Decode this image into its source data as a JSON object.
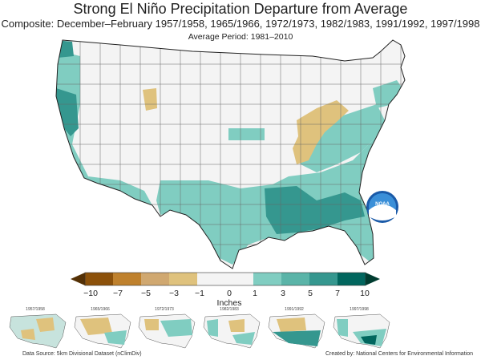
{
  "title": "Strong El Niño Precipitation Departure from Average",
  "subtitle": "Composite: December–February 1957/1958, 1965/1966, 1972/1973, 1982/1983, 1991/1992, 1997/1998",
  "period": "Average Period: 1981–2010",
  "legend": {
    "unit": "Inches",
    "ticks": [
      "−10",
      "−7",
      "−5",
      "−3",
      "−1",
      "0",
      "1",
      "3",
      "5",
      "7",
      "10"
    ],
    "colors": [
      "#8c510a",
      "#bf812d",
      "#d0a870",
      "#dfc27d",
      "#f4f4f4",
      "#c7e3dd",
      "#80cdc1",
      "#5ab4a8",
      "#35978f",
      "#01665e"
    ]
  },
  "logo_text": "NOAA",
  "thumbnails": [
    "1957/1958",
    "1965/1966",
    "1972/1973",
    "1982/1983",
    "1991/1992",
    "1997/1998"
  ],
  "footer": {
    "source": "Data Source: 5km Divisional Dataset (nClimDiv)",
    "credit": "Created by: National Centers for Environmental Information"
  }
}
